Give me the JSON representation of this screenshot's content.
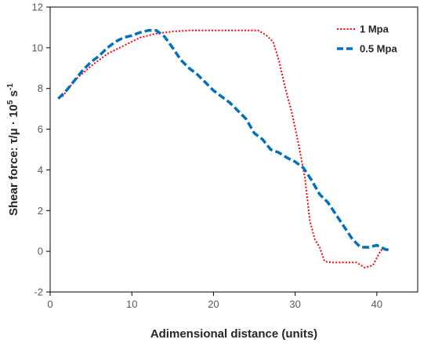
{
  "chart_data": {
    "type": "line",
    "title": "",
    "xlabel": "Adimensional distance (units)",
    "ylabel_parts": {
      "pre": "Shear force: τ/μ · 10",
      "exp1": "5",
      "mid": " s",
      "exp2": "-1"
    },
    "xlim": [
      0,
      45
    ],
    "ylim": [
      -2,
      12
    ],
    "xticks": [
      0,
      10,
      20,
      30,
      40
    ],
    "yticks": [
      -2,
      0,
      2,
      4,
      6,
      8,
      10,
      12
    ],
    "grid": false,
    "legend_position": "top-right",
    "series": [
      {
        "name": "1 Mpa",
        "color": "#ff0000",
        "style": "dotted",
        "x": [
          1.5,
          3,
          5,
          7,
          9,
          11,
          13,
          15,
          17,
          20,
          23,
          25.5,
          26.5,
          27.3,
          28,
          28.8,
          29.6,
          30.4,
          31.2,
          31.8,
          32.4,
          33,
          33.6,
          34.5,
          36,
          37.5,
          38.5,
          39.5,
          40.5,
          41.5
        ],
        "y": [
          7.6,
          8.4,
          9.1,
          9.7,
          10.1,
          10.5,
          10.7,
          10.8,
          10.85,
          10.85,
          10.85,
          10.85,
          10.6,
          10.3,
          9.4,
          8.0,
          6.8,
          5.3,
          3.6,
          1.5,
          0.6,
          0.2,
          -0.5,
          -0.55,
          -0.55,
          -0.55,
          -0.8,
          -0.7,
          0.05,
          0.1
        ]
      },
      {
        "name": "0.5 Mpa",
        "color": "#0070c0",
        "style": "dashed",
        "x": [
          1,
          2,
          3,
          4,
          5,
          6,
          7,
          8,
          9,
          10,
          11,
          12,
          13,
          14,
          15,
          16,
          17,
          18,
          19,
          20,
          21,
          22,
          23,
          24,
          25,
          26,
          27,
          28,
          29,
          30,
          31,
          32,
          33,
          34,
          35,
          36,
          37,
          38,
          39,
          40,
          41,
          41.5
        ],
        "y": [
          7.5,
          7.9,
          8.4,
          8.9,
          9.3,
          9.6,
          10.0,
          10.3,
          10.5,
          10.6,
          10.75,
          10.85,
          10.85,
          10.55,
          10.0,
          9.4,
          9.0,
          8.7,
          8.3,
          7.9,
          7.6,
          7.3,
          6.9,
          6.5,
          5.8,
          5.5,
          5.0,
          4.85,
          4.6,
          4.4,
          4.1,
          3.5,
          2.8,
          2.4,
          1.8,
          1.2,
          0.6,
          0.2,
          0.2,
          0.3,
          0.1,
          0.05
        ]
      }
    ]
  }
}
